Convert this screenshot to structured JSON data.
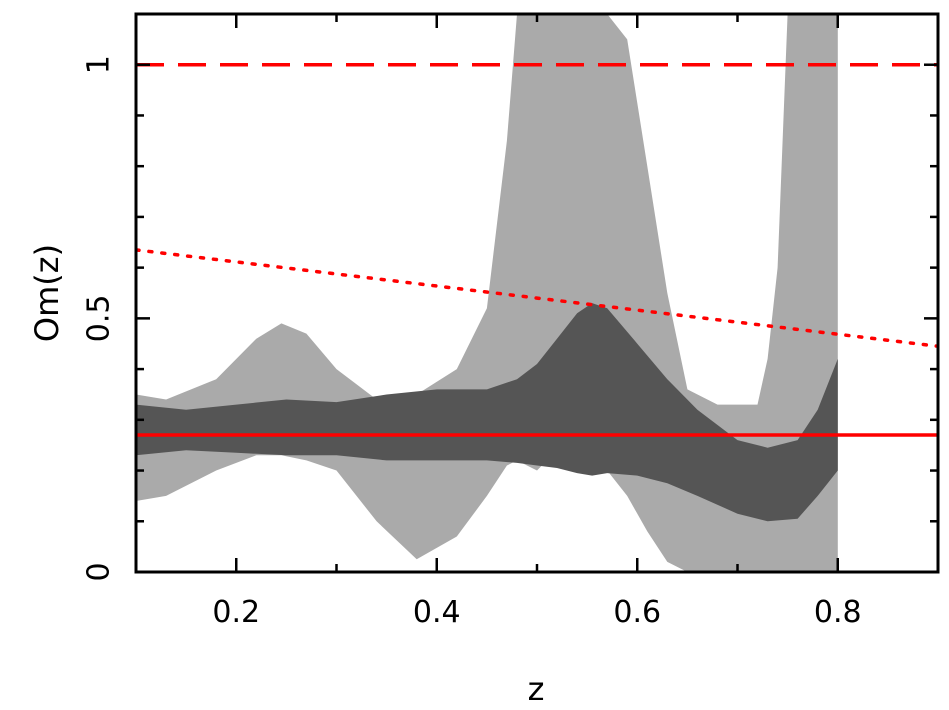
{
  "chart_data": {
    "type": "area",
    "xlabel": "z",
    "ylabel": "Om(z)",
    "xlim": [
      0.1,
      0.9
    ],
    "ylim": [
      0.0,
      1.1
    ],
    "grid": false,
    "x_ticks": [
      {
        "value": 0.2,
        "label": "0.2"
      },
      {
        "value": 0.4,
        "label": "0.4"
      },
      {
        "value": 0.6,
        "label": "0.6"
      },
      {
        "value": 0.8,
        "label": "0.8"
      }
    ],
    "y_ticks": [
      {
        "value": 0.0,
        "label": "0"
      },
      {
        "value": 0.5,
        "label": "0.5"
      },
      {
        "value": 1.0,
        "label": "1"
      }
    ],
    "bands": [
      {
        "role": "outer",
        "color": "#aaaaaa",
        "x": [
          0.1,
          0.13,
          0.18,
          0.22,
          0.245,
          0.27,
          0.3,
          0.34,
          0.38,
          0.42,
          0.45,
          0.47,
          0.48,
          0.49,
          0.5,
          0.51,
          0.53,
          0.55,
          0.57,
          0.59,
          0.61,
          0.63,
          0.65,
          0.68,
          0.7,
          0.72,
          0.73,
          0.74,
          0.75,
          0.76,
          0.78,
          0.8
        ],
        "upper": [
          0.35,
          0.34,
          0.38,
          0.46,
          0.49,
          0.47,
          0.4,
          0.34,
          0.35,
          0.4,
          0.52,
          0.85,
          1.1,
          1.1,
          1.1,
          1.1,
          1.1,
          1.1,
          1.1,
          1.05,
          0.8,
          0.55,
          0.36,
          0.33,
          0.33,
          0.33,
          0.42,
          0.6,
          1.1,
          1.1,
          1.1,
          1.1
        ],
        "lower": [
          0.14,
          0.15,
          0.2,
          0.23,
          0.23,
          0.22,
          0.2,
          0.1,
          0.025,
          0.07,
          0.15,
          0.21,
          0.22,
          0.21,
          0.2,
          0.22,
          0.23,
          0.22,
          0.2,
          0.15,
          0.08,
          0.02,
          0.0,
          0.0,
          0.0,
          0.0,
          0.0,
          0.0,
          0.0,
          0.0,
          0.0,
          0.0
        ]
      },
      {
        "role": "inner",
        "color": "#555555",
        "x": [
          0.1,
          0.15,
          0.2,
          0.25,
          0.3,
          0.35,
          0.4,
          0.45,
          0.48,
          0.5,
          0.52,
          0.54,
          0.555,
          0.57,
          0.6,
          0.63,
          0.66,
          0.7,
          0.73,
          0.76,
          0.78,
          0.8
        ],
        "upper": [
          0.33,
          0.32,
          0.33,
          0.34,
          0.335,
          0.35,
          0.36,
          0.36,
          0.38,
          0.41,
          0.46,
          0.51,
          0.53,
          0.52,
          0.45,
          0.38,
          0.32,
          0.26,
          0.245,
          0.26,
          0.32,
          0.42
        ],
        "lower": [
          0.23,
          0.24,
          0.235,
          0.23,
          0.23,
          0.22,
          0.22,
          0.22,
          0.215,
          0.21,
          0.205,
          0.195,
          0.19,
          0.195,
          0.19,
          0.175,
          0.15,
          0.115,
          0.1,
          0.105,
          0.15,
          0.2
        ]
      }
    ],
    "reference_lines": [
      {
        "style": "solid",
        "color": "#ff0000",
        "x": [
          0.1,
          0.9
        ],
        "y": [
          0.27,
          0.27
        ]
      },
      {
        "style": "dashed",
        "color": "#ff0000",
        "x": [
          0.1,
          0.9
        ],
        "y": [
          1.0,
          1.0
        ]
      },
      {
        "style": "dotted",
        "color": "#ff0000",
        "x": [
          0.1,
          0.9
        ],
        "y": [
          0.635,
          0.445
        ]
      }
    ]
  }
}
